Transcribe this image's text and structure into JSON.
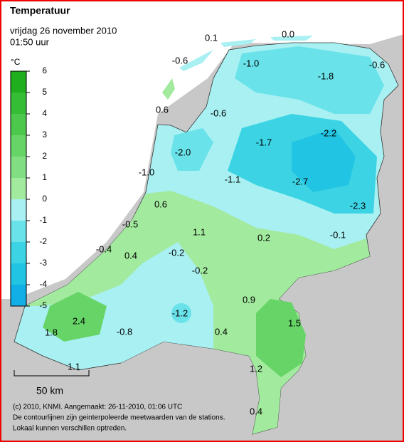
{
  "header": {
    "title": "Temperatuur",
    "date": "vrijdag 26 november 2010",
    "time": "01:50 uur"
  },
  "legend": {
    "unit": "°C",
    "ticks": [
      6,
      5,
      4,
      3,
      2,
      1,
      0,
      -1,
      -2,
      -3,
      -4,
      -5
    ],
    "colors": [
      "#1eae1e",
      "#35bd35",
      "#4cc94c",
      "#66d466",
      "#82de82",
      "#a2ea9e",
      "#a8f0f2",
      "#6ae2ea",
      "#3cd4e4",
      "#22c4e4",
      "#12aee6"
    ]
  },
  "stations": [
    "0.1",
    "0.0",
    "-0.6",
    "-1.0",
    "-1.8",
    "-0.6",
    "0.6",
    "-0.6",
    "-1.7",
    "-2.2",
    "-2.0",
    "-1.0",
    "-1.1",
    "-2.7",
    "-2.3",
    "0.6",
    "-0.5",
    "1.1",
    "0.2",
    "-0.1",
    "-0.4",
    "0.4",
    "-0.2",
    "-0.2",
    "0.9",
    "-1.2",
    "1.5",
    "2.4",
    "1.8",
    "-0.8",
    "0.4",
    "1.1",
    "1.2",
    "0.4"
  ],
  "scale": "50 km",
  "footer": [
    "(c) 2010, KNMI. Aangemaakt: 26-11-2010, 01:06 UTC",
    "De contourlijnen zijn geinterpoleerde meetwaarden van de stations.",
    "Lokaal kunnen verschillen optreden."
  ]
}
